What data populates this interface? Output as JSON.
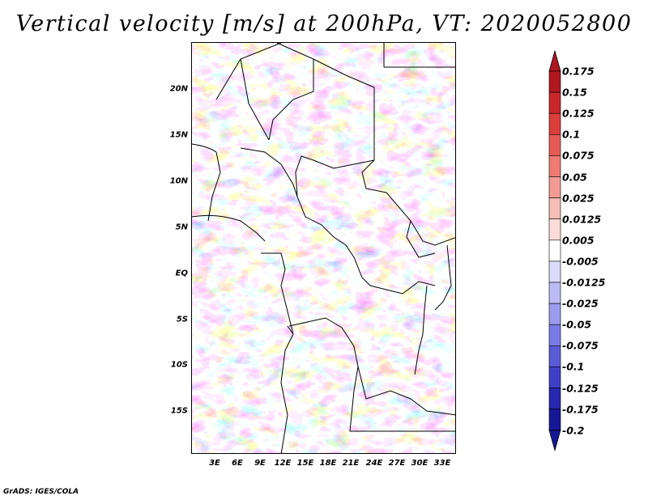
{
  "title": "Vertical velocity [m/s] at 200hPa, VT: 2020052800",
  "footer": "GrADS: IGES/COLA",
  "map": {
    "lat_labels": [
      "20N",
      "15N",
      "10N",
      "5N",
      "EQ",
      "5S",
      "10S",
      "15S"
    ],
    "lon_labels": [
      "3E",
      "6E",
      "9E",
      "12E",
      "15E",
      "18E",
      "21E",
      "24E",
      "27E",
      "30E",
      "33E"
    ]
  },
  "colorbar": {
    "levels": [
      "0.175",
      "0.15",
      "0.125",
      "0.1",
      "0.075",
      "0.05",
      "0.025",
      "0.0125",
      "0.005",
      "-0.005",
      "-0.0125",
      "-0.025",
      "-0.05",
      "-0.075",
      "-0.1",
      "-0.125",
      "-0.175",
      "-0.2"
    ],
    "colors": [
      "#b0171f",
      "#c8282a",
      "#da3f3c",
      "#e65b55",
      "#ee7b74",
      "#f39c95",
      "#f7bdb7",
      "#fadcd8",
      "#ffffff",
      "#dcdcfa",
      "#bcbcf4",
      "#9c9cee",
      "#7b7be6",
      "#5b5bd8",
      "#3f3fc6",
      "#2828b0",
      "#171796"
    ],
    "colors_note_top": "#b0171f",
    "colors_note_bottom": "#171796"
  }
}
